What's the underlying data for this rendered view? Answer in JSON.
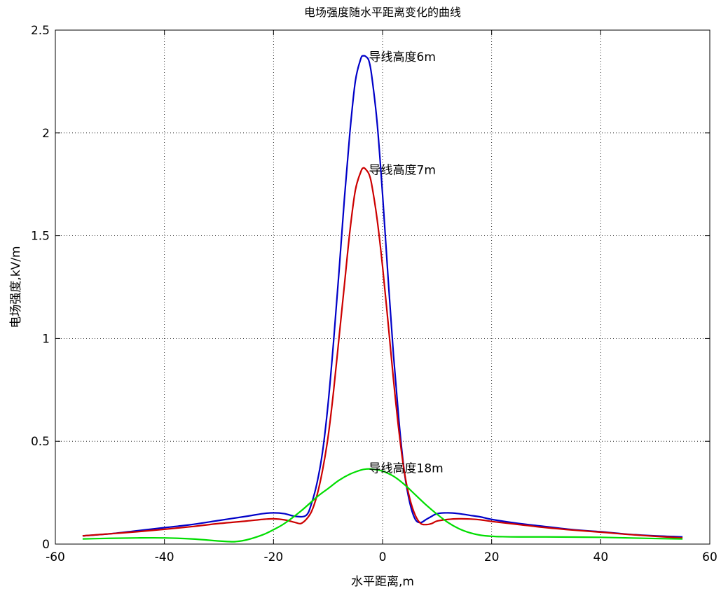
{
  "chart_data": {
    "type": "line",
    "title": "电场强度随水平距离变化的曲线",
    "xlabel": "水平距离,m",
    "ylabel": "电场强度,kV/m",
    "xlim": [
      -60,
      60
    ],
    "ylim": [
      0,
      2.5
    ],
    "grid": true,
    "x_ticks": [
      -60,
      -40,
      -20,
      0,
      20,
      40,
      60
    ],
    "y_ticks": [
      0,
      0.5,
      1,
      1.5,
      2,
      2.5
    ],
    "x_tick_labels": [
      "-60",
      "-40",
      "-20",
      "0",
      "20",
      "40",
      "60"
    ],
    "y_tick_labels": [
      "0",
      "0.5",
      "1",
      "1.5",
      "2",
      "2.5"
    ],
    "series": [
      {
        "name": "导线高度6m",
        "color": "#0000c8",
        "x": [
          -55,
          -50,
          -45,
          -40,
          -35,
          -30,
          -25,
          -22,
          -20,
          -18,
          -16,
          -14,
          -13,
          -12,
          -11,
          -10,
          -9,
          -8,
          -7,
          -6,
          -5,
          -4,
          -3.5,
          -3,
          -2.5,
          -2,
          -1,
          0,
          1,
          2,
          3,
          4,
          5,
          6,
          7,
          8,
          9,
          10,
          12,
          14,
          16,
          18,
          20,
          25,
          30,
          35,
          40,
          45,
          50,
          55
        ],
        "y": [
          0.04,
          0.05,
          0.065,
          0.08,
          0.095,
          0.115,
          0.135,
          0.148,
          0.152,
          0.148,
          0.135,
          0.14,
          0.2,
          0.3,
          0.45,
          0.68,
          0.98,
          1.32,
          1.68,
          2.0,
          2.25,
          2.36,
          2.375,
          2.37,
          2.35,
          2.28,
          2.05,
          1.7,
          1.3,
          0.92,
          0.6,
          0.35,
          0.2,
          0.12,
          0.105,
          0.12,
          0.135,
          0.148,
          0.152,
          0.148,
          0.14,
          0.132,
          0.12,
          0.1,
          0.085,
          0.07,
          0.06,
          0.048,
          0.04,
          0.035
        ]
      },
      {
        "name": "导线高度7m",
        "color": "#cc0000",
        "x": [
          -55,
          -50,
          -45,
          -40,
          -35,
          -30,
          -25,
          -22,
          -20,
          -18,
          -16,
          -15,
          -14,
          -13,
          -12,
          -11,
          -10,
          -9,
          -8,
          -7,
          -6,
          -5,
          -4,
          -3.5,
          -3,
          -2.5,
          -2,
          -1,
          0,
          1,
          2,
          3,
          4,
          5,
          6,
          7,
          8,
          9,
          10,
          12,
          14,
          16,
          18,
          20,
          25,
          30,
          35,
          40,
          45,
          50,
          55
        ],
        "y": [
          0.04,
          0.05,
          0.06,
          0.072,
          0.085,
          0.1,
          0.112,
          0.12,
          0.123,
          0.118,
          0.105,
          0.1,
          0.12,
          0.16,
          0.24,
          0.36,
          0.52,
          0.74,
          1.0,
          1.26,
          1.52,
          1.72,
          1.81,
          1.83,
          1.82,
          1.8,
          1.75,
          1.58,
          1.35,
          1.08,
          0.8,
          0.55,
          0.35,
          0.22,
          0.14,
          0.1,
          0.095,
          0.1,
          0.112,
          0.12,
          0.123,
          0.122,
          0.118,
          0.11,
          0.095,
          0.08,
          0.068,
          0.058,
          0.047,
          0.038,
          0.03
        ]
      },
      {
        "name": "导线高度18m",
        "color": "#00dd00",
        "x": [
          -55,
          -50,
          -45,
          -40,
          -35,
          -30,
          -28,
          -27,
          -25,
          -22,
          -20,
          -18,
          -15,
          -12,
          -10,
          -8,
          -6,
          -4,
          -3,
          -2,
          0,
          2,
          4,
          6,
          8,
          10,
          12,
          14,
          16,
          18,
          20,
          22,
          25,
          30,
          35,
          40,
          45,
          50,
          55
        ],
        "y": [
          0.025,
          0.028,
          0.03,
          0.03,
          0.025,
          0.015,
          0.012,
          0.012,
          0.02,
          0.045,
          0.07,
          0.1,
          0.16,
          0.23,
          0.27,
          0.31,
          0.34,
          0.36,
          0.365,
          0.365,
          0.355,
          0.33,
          0.29,
          0.24,
          0.19,
          0.145,
          0.105,
          0.075,
          0.055,
          0.043,
          0.038,
          0.036,
          0.035,
          0.035,
          0.034,
          0.033,
          0.03,
          0.027,
          0.025
        ]
      }
    ],
    "annotations": [
      {
        "text": "导线高度6m",
        "x": -2.5,
        "y": 2.37
      },
      {
        "text": "导线高度7m",
        "x": -2.5,
        "y": 1.82
      },
      {
        "text": "导线高度18m",
        "x": -2.5,
        "y": 0.37
      }
    ]
  }
}
